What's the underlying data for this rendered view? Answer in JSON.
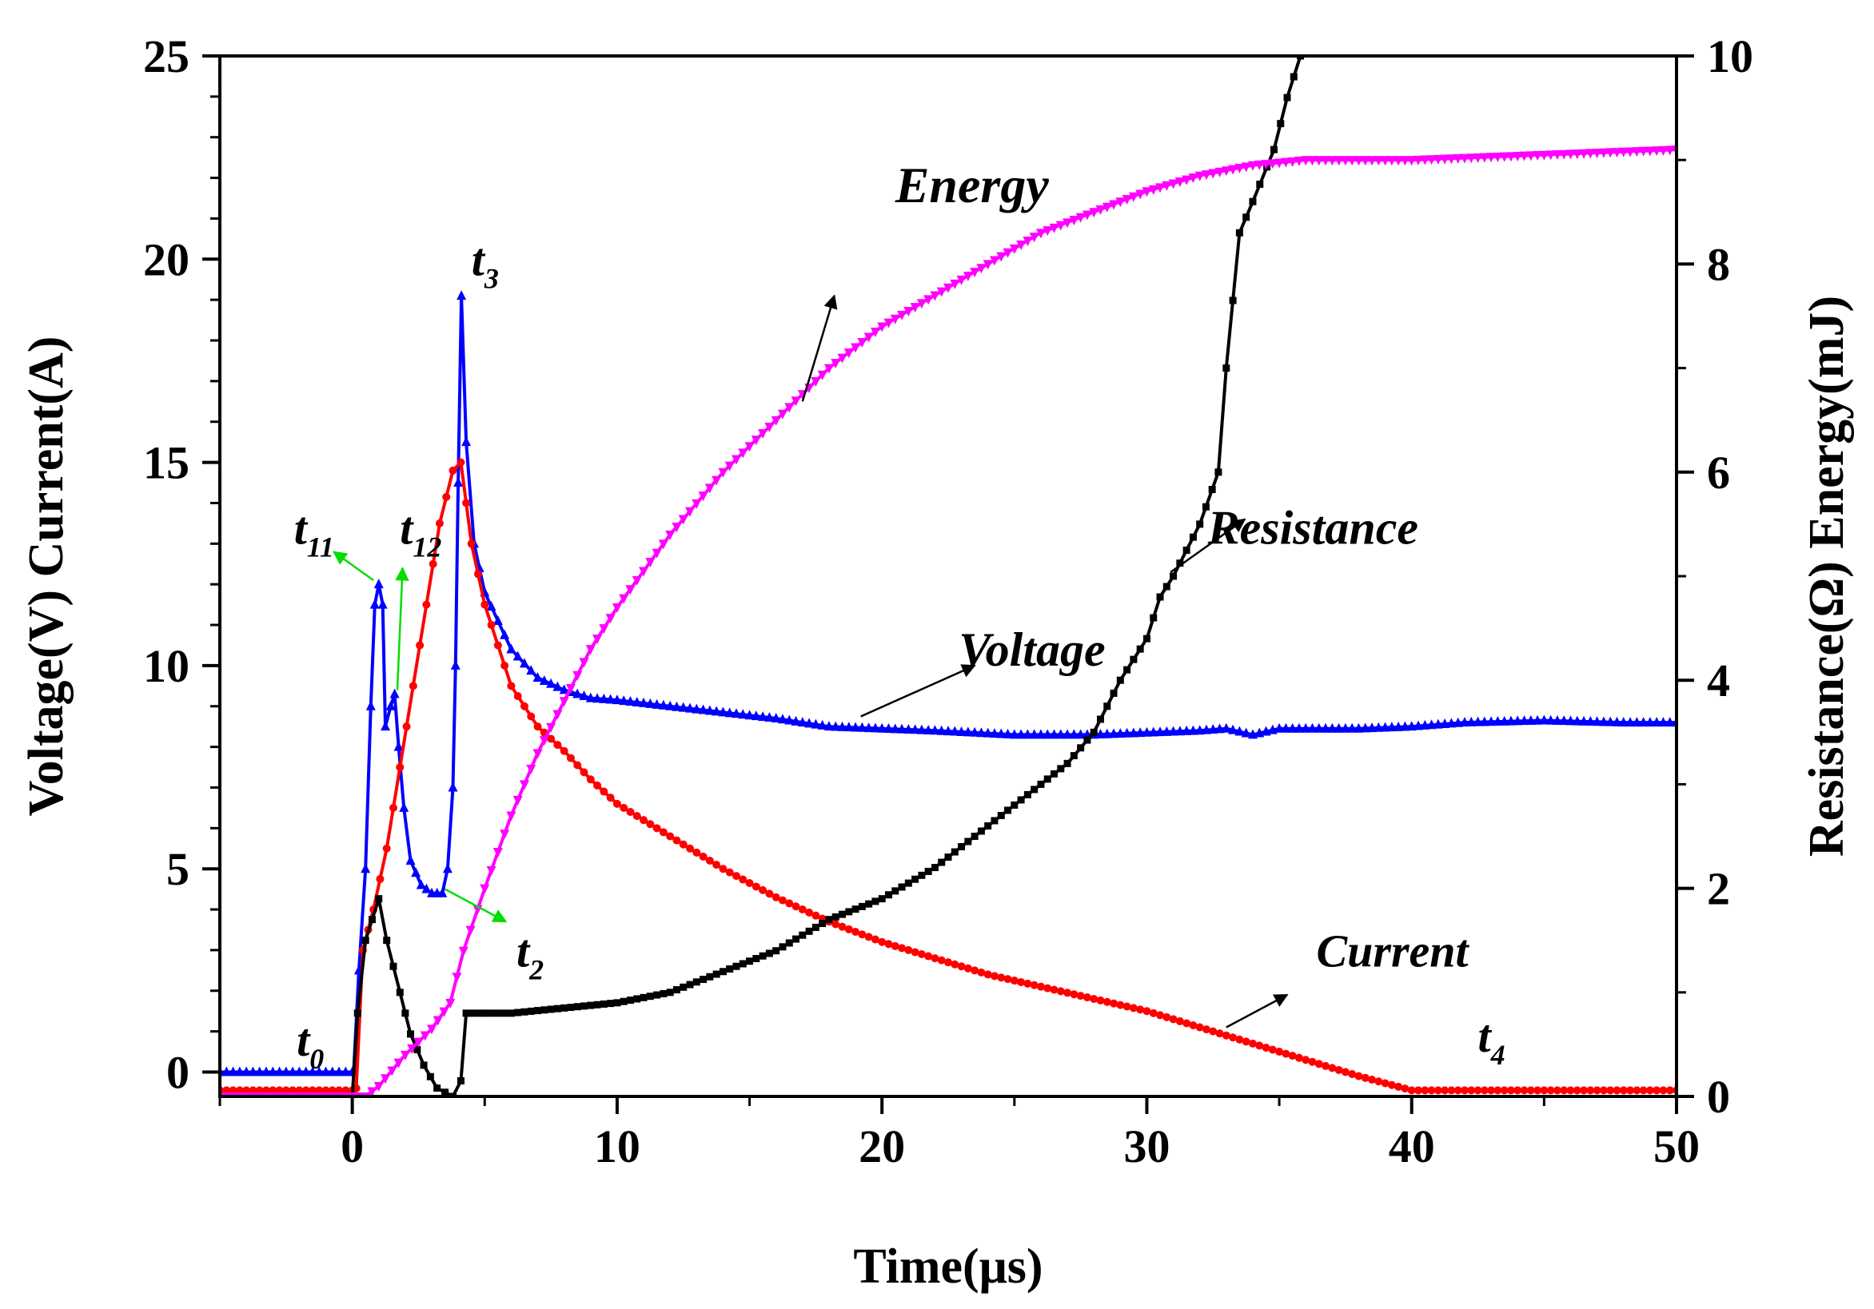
{
  "chart_data": {
    "type": "line",
    "xlabel": "Time(μs)",
    "ylabel_left": "Voltage(V) Current(A)",
    "ylabel_right": "Resistance(Ω) Energy(mJ)",
    "xlim": [
      -5,
      50
    ],
    "ylim_left": [
      -0.6,
      25
    ],
    "ylim_right": [
      0,
      10
    ],
    "x_ticks": [
      0,
      10,
      20,
      30,
      40,
      50
    ],
    "y_left_ticks": [
      0,
      5,
      10,
      15,
      20,
      25
    ],
    "y_right_ticks": [
      0,
      2,
      4,
      6,
      8,
      10
    ],
    "grid": false,
    "series": [
      {
        "name": "Voltage",
        "axis": "left",
        "color": "#0000ff",
        "marker": "triangle",
        "points": [
          [
            -5,
            0
          ],
          [
            0,
            0
          ],
          [
            0.05,
            0
          ],
          [
            0.25,
            2.5
          ],
          [
            0.5,
            5
          ],
          [
            0.7,
            9
          ],
          [
            0.85,
            11.5
          ],
          [
            1.0,
            12.0
          ],
          [
            1.15,
            11.5
          ],
          [
            1.25,
            8.5
          ],
          [
            1.45,
            9.0
          ],
          [
            1.6,
            9.3
          ],
          [
            1.75,
            8.0
          ],
          [
            1.95,
            6.5
          ],
          [
            2.2,
            5.2
          ],
          [
            2.6,
            4.6
          ],
          [
            3.0,
            4.4
          ],
          [
            3.4,
            4.4
          ],
          [
            3.6,
            5.0
          ],
          [
            3.8,
            7.0
          ],
          [
            3.9,
            10.0
          ],
          [
            4.0,
            14.5
          ],
          [
            4.12,
            19.1
          ],
          [
            4.3,
            15.5
          ],
          [
            4.6,
            13.0
          ],
          [
            5.0,
            11.8
          ],
          [
            6.0,
            10.4
          ],
          [
            7.0,
            9.7
          ],
          [
            8.0,
            9.4
          ],
          [
            9.0,
            9.2
          ],
          [
            10.0,
            9.15
          ],
          [
            12.0,
            9.0
          ],
          [
            14.0,
            8.85
          ],
          [
            16.0,
            8.7
          ],
          [
            18.0,
            8.5
          ],
          [
            20.0,
            8.45
          ],
          [
            22.0,
            8.4
          ],
          [
            25.0,
            8.3
          ],
          [
            28.0,
            8.3
          ],
          [
            30.0,
            8.35
          ],
          [
            32.0,
            8.4
          ],
          [
            33.0,
            8.45
          ],
          [
            34.0,
            8.3
          ],
          [
            35.0,
            8.45
          ],
          [
            38.0,
            8.45
          ],
          [
            40.0,
            8.5
          ],
          [
            42.0,
            8.6
          ],
          [
            45.0,
            8.65
          ],
          [
            48.0,
            8.6
          ],
          [
            50.0,
            8.6
          ]
        ]
      },
      {
        "name": "Current",
        "axis": "left",
        "color": "#ff0000",
        "marker": "circle",
        "points": [
          [
            -5,
            -0.45
          ],
          [
            0,
            -0.45
          ],
          [
            0.15,
            -0.4
          ],
          [
            0.4,
            3.0
          ],
          [
            0.8,
            4.0
          ],
          [
            1.3,
            5.5
          ],
          [
            1.8,
            7.5
          ],
          [
            2.3,
            9.5
          ],
          [
            2.8,
            11.5
          ],
          [
            3.3,
            13.5
          ],
          [
            3.8,
            14.8
          ],
          [
            4.1,
            15.0
          ],
          [
            4.3,
            14.0
          ],
          [
            4.5,
            13.0
          ],
          [
            5.0,
            11.5
          ],
          [
            6.0,
            9.5
          ],
          [
            7.0,
            8.5
          ],
          [
            8.0,
            7.9
          ],
          [
            9.0,
            7.2
          ],
          [
            10.0,
            6.6
          ],
          [
            12.0,
            5.8
          ],
          [
            14.0,
            5.0
          ],
          [
            16.0,
            4.3
          ],
          [
            18.0,
            3.7
          ],
          [
            20.0,
            3.2
          ],
          [
            22.0,
            2.8
          ],
          [
            24.0,
            2.4
          ],
          [
            26.0,
            2.1
          ],
          [
            28.0,
            1.8
          ],
          [
            30.0,
            1.5
          ],
          [
            32.0,
            1.1
          ],
          [
            34.0,
            0.7
          ],
          [
            36.0,
            0.3
          ],
          [
            38.0,
            -0.1
          ],
          [
            40.0,
            -0.45
          ],
          [
            45.0,
            -0.45
          ],
          [
            50.0,
            -0.45
          ]
        ]
      },
      {
        "name": "Resistance",
        "axis": "right",
        "color": "#000000",
        "marker": "square",
        "points": [
          [
            -5,
            0
          ],
          [
            0,
            0
          ],
          [
            0.2,
            0.8
          ],
          [
            0.5,
            1.5
          ],
          [
            1.0,
            1.9
          ],
          [
            1.3,
            1.5
          ],
          [
            1.8,
            1.0
          ],
          [
            2.2,
            0.6
          ],
          [
            2.7,
            0.3
          ],
          [
            3.2,
            0.08
          ],
          [
            3.8,
            0.0
          ],
          [
            4.1,
            0.15
          ],
          [
            4.3,
            0.8
          ],
          [
            5.0,
            0.8
          ],
          [
            6.0,
            0.8
          ],
          [
            8.0,
            0.85
          ],
          [
            10.0,
            0.9
          ],
          [
            12.0,
            1.0
          ],
          [
            14.0,
            1.2
          ],
          [
            16.0,
            1.4
          ],
          [
            18.0,
            1.7
          ],
          [
            20.0,
            1.9
          ],
          [
            22.0,
            2.2
          ],
          [
            24.0,
            2.6
          ],
          [
            26.0,
            3.0
          ],
          [
            27.0,
            3.2
          ],
          [
            28.0,
            3.5
          ],
          [
            29.0,
            4.0
          ],
          [
            30.0,
            4.4
          ],
          [
            30.5,
            4.8
          ],
          [
            31.0,
            5.0
          ],
          [
            32.0,
            5.5
          ],
          [
            32.7,
            6.0
          ],
          [
            33.0,
            7.0
          ],
          [
            33.5,
            8.3
          ],
          [
            34.0,
            8.6
          ],
          [
            34.8,
            9.1
          ],
          [
            35.3,
            9.6
          ],
          [
            35.8,
            10.0
          ]
        ]
      },
      {
        "name": "Energy",
        "axis": "right",
        "color": "#ff00ff",
        "marker": "triangle-down",
        "points": [
          [
            -5,
            0
          ],
          [
            0,
            0
          ],
          [
            0.5,
            0
          ],
          [
            1.0,
            0.1
          ],
          [
            2.0,
            0.4
          ],
          [
            3.0,
            0.65
          ],
          [
            3.7,
            0.9
          ],
          [
            4.2,
            1.4
          ],
          [
            5.0,
            2.0
          ],
          [
            6.0,
            2.7
          ],
          [
            7.0,
            3.3
          ],
          [
            8.0,
            3.8
          ],
          [
            9.0,
            4.3
          ],
          [
            10.0,
            4.7
          ],
          [
            12.0,
            5.4
          ],
          [
            14.0,
            6.0
          ],
          [
            16.0,
            6.5
          ],
          [
            18.0,
            7.0
          ],
          [
            20.0,
            7.4
          ],
          [
            22.0,
            7.7
          ],
          [
            24.0,
            8.0
          ],
          [
            26.0,
            8.3
          ],
          [
            28.0,
            8.5
          ],
          [
            30.0,
            8.7
          ],
          [
            32.0,
            8.85
          ],
          [
            34.0,
            8.95
          ],
          [
            36.0,
            9.0
          ],
          [
            40.0,
            9.0
          ],
          [
            45.0,
            9.05
          ],
          [
            50.0,
            9.1
          ]
        ]
      }
    ],
    "annotations": [
      {
        "text": "Energy",
        "font": 64,
        "x": 20.5,
        "y": 21.4,
        "arrow_from": [
          17.0,
          16.5
        ],
        "arrow_to": [
          18.2,
          19.1
        ],
        "arrow_color": "#000000"
      },
      {
        "text": "Resistance",
        "font": 60,
        "x": 32.3,
        "y": 13.0,
        "arrow_from": [
          30.9,
          12.3
        ],
        "arrow_to": [
          33.7,
          13.6
        ],
        "arrow_color": "#000000"
      },
      {
        "text": "Voltage",
        "font": 60,
        "x": 22.9,
        "y": 10.0,
        "arrow_from": [
          19.2,
          8.75
        ],
        "arrow_to": [
          23.5,
          10.0
        ],
        "arrow_color": "#000000"
      },
      {
        "text": "Current",
        "font": 58,
        "x": 36.4,
        "y": 2.6,
        "arrow_from": [
          33.0,
          1.1
        ],
        "arrow_to": [
          35.3,
          1.9
        ],
        "arrow_color": "#000000"
      },
      {
        "text": "t",
        "sub": "3",
        "font": 58,
        "x": 4.5,
        "y": 19.6
      },
      {
        "text": "t",
        "sub": "11",
        "font": 58,
        "x": -2.2,
        "y": 13.0,
        "arrow_from": [
          0.8,
          12.1
        ],
        "arrow_to": [
          -0.7,
          12.8
        ],
        "arrow_color": "#00dd00"
      },
      {
        "text": "t",
        "sub": "12",
        "font": 58,
        "x": 1.8,
        "y": 13.0,
        "arrow_from": [
          1.7,
          9.4
        ],
        "arrow_to": [
          1.9,
          12.4
        ],
        "arrow_color": "#00dd00"
      },
      {
        "text": "t",
        "sub": "2",
        "font": 58,
        "x": 6.2,
        "y": 2.6,
        "arrow_from": [
          3.5,
          4.5
        ],
        "arrow_to": [
          5.8,
          3.7
        ],
        "arrow_color": "#00dd00"
      },
      {
        "text": "t",
        "sub": "0",
        "font": 58,
        "x": -2.1,
        "y": 0.4
      },
      {
        "text": "t",
        "sub": "4",
        "font": 58,
        "x": 42.5,
        "y": 0.5
      }
    ]
  }
}
